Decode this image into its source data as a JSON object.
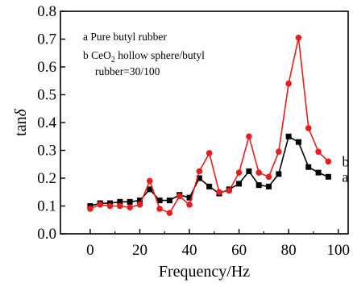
{
  "chart_data": {
    "type": "line",
    "xlabel": "Frequency/Hz",
    "ylabel": "tanδ",
    "xlim": [
      -12,
      104
    ],
    "ylim": [
      0.0,
      0.8
    ],
    "x_ticks": [
      0,
      20,
      40,
      60,
      80,
      100
    ],
    "y_ticks": [
      0.0,
      0.1,
      0.2,
      0.3,
      0.4,
      0.5,
      0.6,
      0.7,
      0.8
    ],
    "grid": false,
    "legend_position": "top-left",
    "legend": [
      {
        "line1": "a Pure butyl rubber"
      },
      {
        "line1": "b CeO",
        "sub": "2",
        "line1_rest": " hollow sphere/butyl",
        "line2": "rubber=30/100"
      }
    ],
    "series": [
      {
        "tag": "a",
        "color": "#000000",
        "marker": "square",
        "x": [
          0,
          4,
          8,
          12,
          16,
          20,
          24,
          28,
          32,
          36,
          40,
          44,
          48,
          52,
          56,
          60,
          64,
          68,
          72,
          76,
          80,
          84,
          88,
          92,
          96
        ],
        "y": [
          0.1,
          0.11,
          0.11,
          0.115,
          0.115,
          0.12,
          0.16,
          0.12,
          0.12,
          0.14,
          0.13,
          0.2,
          0.17,
          0.145,
          0.16,
          0.18,
          0.225,
          0.175,
          0.17,
          0.215,
          0.35,
          0.33,
          0.24,
          0.22,
          0.205
        ]
      },
      {
        "tag": "b",
        "color": "#e81d1d",
        "marker": "circle",
        "x": [
          0,
          4,
          8,
          12,
          16,
          20,
          24,
          28,
          32,
          36,
          40,
          44,
          48,
          52,
          56,
          60,
          64,
          68,
          72,
          76,
          80,
          84,
          88,
          92,
          96
        ],
        "y": [
          0.09,
          0.105,
          0.1,
          0.1,
          0.095,
          0.105,
          0.19,
          0.09,
          0.075,
          0.135,
          0.105,
          0.225,
          0.29,
          0.15,
          0.155,
          0.22,
          0.35,
          0.22,
          0.205,
          0.295,
          0.54,
          0.705,
          0.38,
          0.295,
          0.26
        ]
      }
    ]
  }
}
